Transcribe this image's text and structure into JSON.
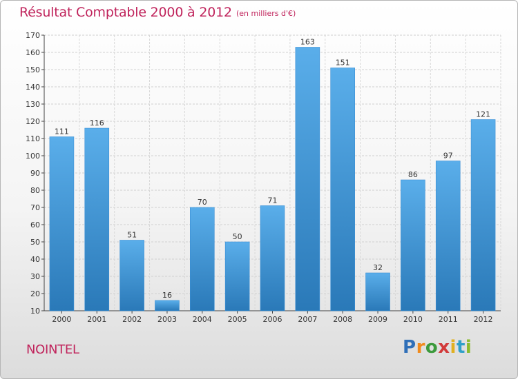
{
  "title": "Résultat Comptable 2000 à 2012",
  "unit": "(en milliers d'€)",
  "commune": "NOINTEL",
  "brand": {
    "letters": [
      "P",
      "r",
      "o",
      "x",
      "i",
      "t",
      "i"
    ],
    "colors": [
      "#2f6fb8",
      "#f08a1c",
      "#3c9a3c",
      "#d23a3a",
      "#e0b020",
      "#2fa0c8",
      "#8bbb2b"
    ]
  },
  "colors": {
    "bar_light": "#5aaeea",
    "bar_dark": "#2a79b8",
    "title": "#c0245c"
  },
  "chart_data": {
    "type": "bar",
    "title": "Résultat Comptable 2000 à 2012",
    "xlabel": "",
    "ylabel": "",
    "categories": [
      "2000",
      "2001",
      "2002",
      "2003",
      "2004",
      "2005",
      "2006",
      "2007",
      "2008",
      "2009",
      "2010",
      "2011",
      "2012"
    ],
    "values": [
      111,
      116,
      51,
      16,
      70,
      50,
      71,
      163,
      151,
      32,
      86,
      97,
      121
    ],
    "ylim": [
      10,
      170
    ],
    "yticks": [
      10,
      20,
      30,
      40,
      50,
      60,
      70,
      80,
      90,
      100,
      110,
      120,
      130,
      140,
      150,
      160,
      170
    ],
    "grid": true,
    "data_labels": true
  }
}
